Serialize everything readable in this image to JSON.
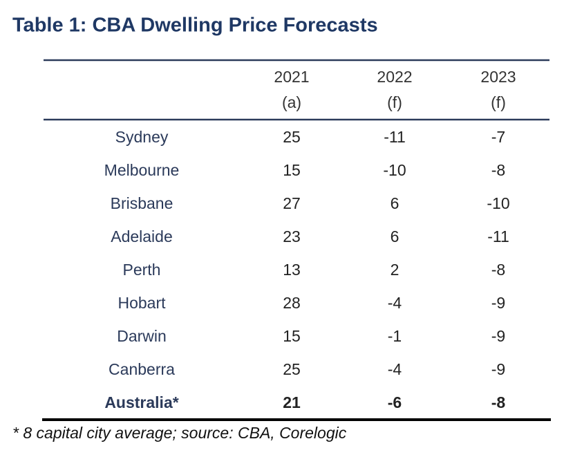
{
  "title": "Table 1: CBA Dwelling Price Forecasts",
  "table": {
    "columns": [
      {
        "year": "2021",
        "note": "(a)"
      },
      {
        "year": "2022",
        "note": "(f)"
      },
      {
        "year": "2023",
        "note": "(f)"
      }
    ],
    "rows": [
      [
        "Sydney",
        25,
        -11,
        -7
      ],
      [
        "Melbourne",
        15,
        -10,
        -8
      ],
      [
        "Brisbane",
        27,
        6,
        -10
      ],
      [
        "Adelaide",
        23,
        6,
        -11
      ],
      [
        "Perth",
        13,
        2,
        -8
      ],
      [
        "Hobart",
        28,
        -4,
        -9
      ],
      [
        "Darwin",
        15,
        -1,
        -9
      ],
      [
        "Canberra",
        25,
        -4,
        -9
      ]
    ],
    "total": [
      "Australia*",
      21,
      -6,
      -8
    ]
  },
  "footnote": "* 8 capital city average; source: CBA, Corelogic"
}
